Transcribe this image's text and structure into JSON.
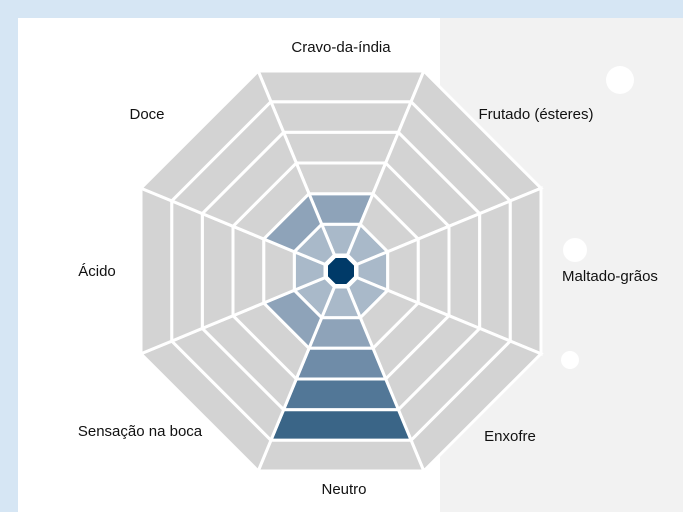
{
  "chart_data": {
    "type": "radar",
    "categories": [
      "Cravo-da-índia",
      "Frutado (ésteres)",
      "Maltado-grãos",
      "Enxofre",
      "Neutro",
      "Sensação na boca",
      "Ácido",
      "Doce"
    ],
    "values": [
      2,
      1,
      1,
      1,
      5,
      2,
      1,
      2
    ],
    "ylim": [
      0,
      6
    ],
    "colors": [
      "#a9b9c9",
      "#8ea3b9",
      "#6f8ca8",
      "#527797",
      "#3a6587",
      "#23557d"
    ],
    "center_color": "#003a68",
    "empty_color": "#d3d3d3"
  }
}
